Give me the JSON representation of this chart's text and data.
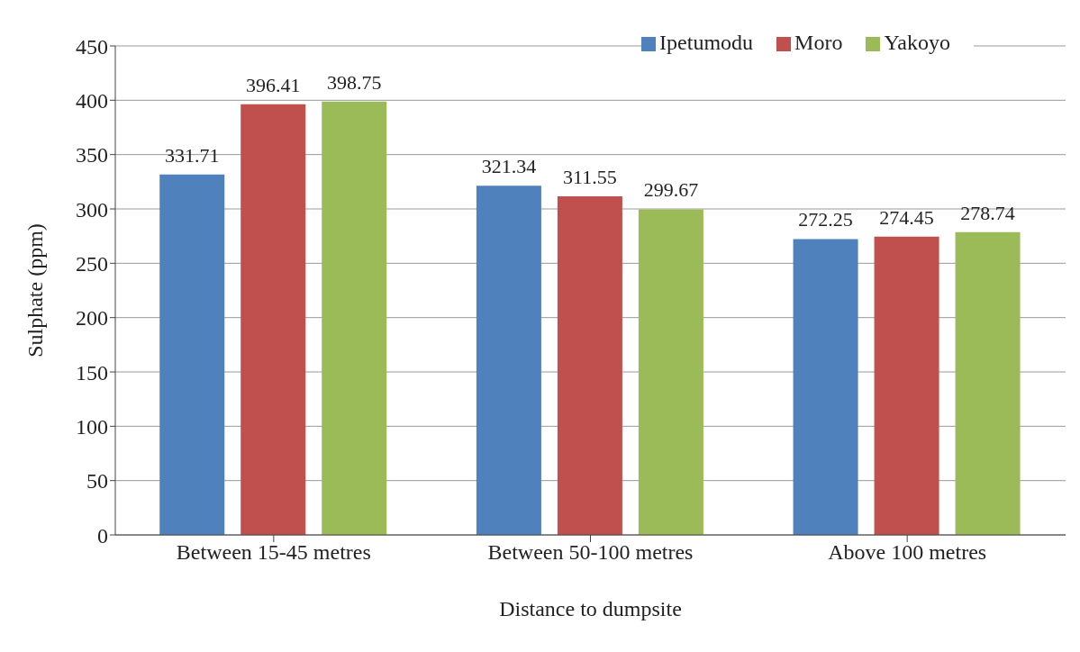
{
  "chart_data": {
    "type": "bar",
    "xlabel": "Distance to dumpsite",
    "ylabel": "Sulphate (ppm)",
    "categories": [
      "Between 15-45 metres",
      "Between 50-100 metres",
      "Above 100 metres"
    ],
    "series": [
      {
        "name": "Ipetumodu",
        "color": "#4f81bd",
        "values": [
          331.71,
          321.34,
          272.25
        ]
      },
      {
        "name": "Moro",
        "color": "#c0504d",
        "values": [
          396.41,
          311.55,
          274.45
        ]
      },
      {
        "name": "Yakoyo",
        "color": "#9bbb59",
        "values": [
          398.75,
          299.67,
          278.74
        ]
      }
    ],
    "ylim": [
      0,
      450
    ],
    "yticks": [
      0,
      50,
      100,
      150,
      200,
      250,
      300,
      350,
      400,
      450
    ],
    "grid": "y",
    "legend": "top right",
    "data_labels": true
  }
}
